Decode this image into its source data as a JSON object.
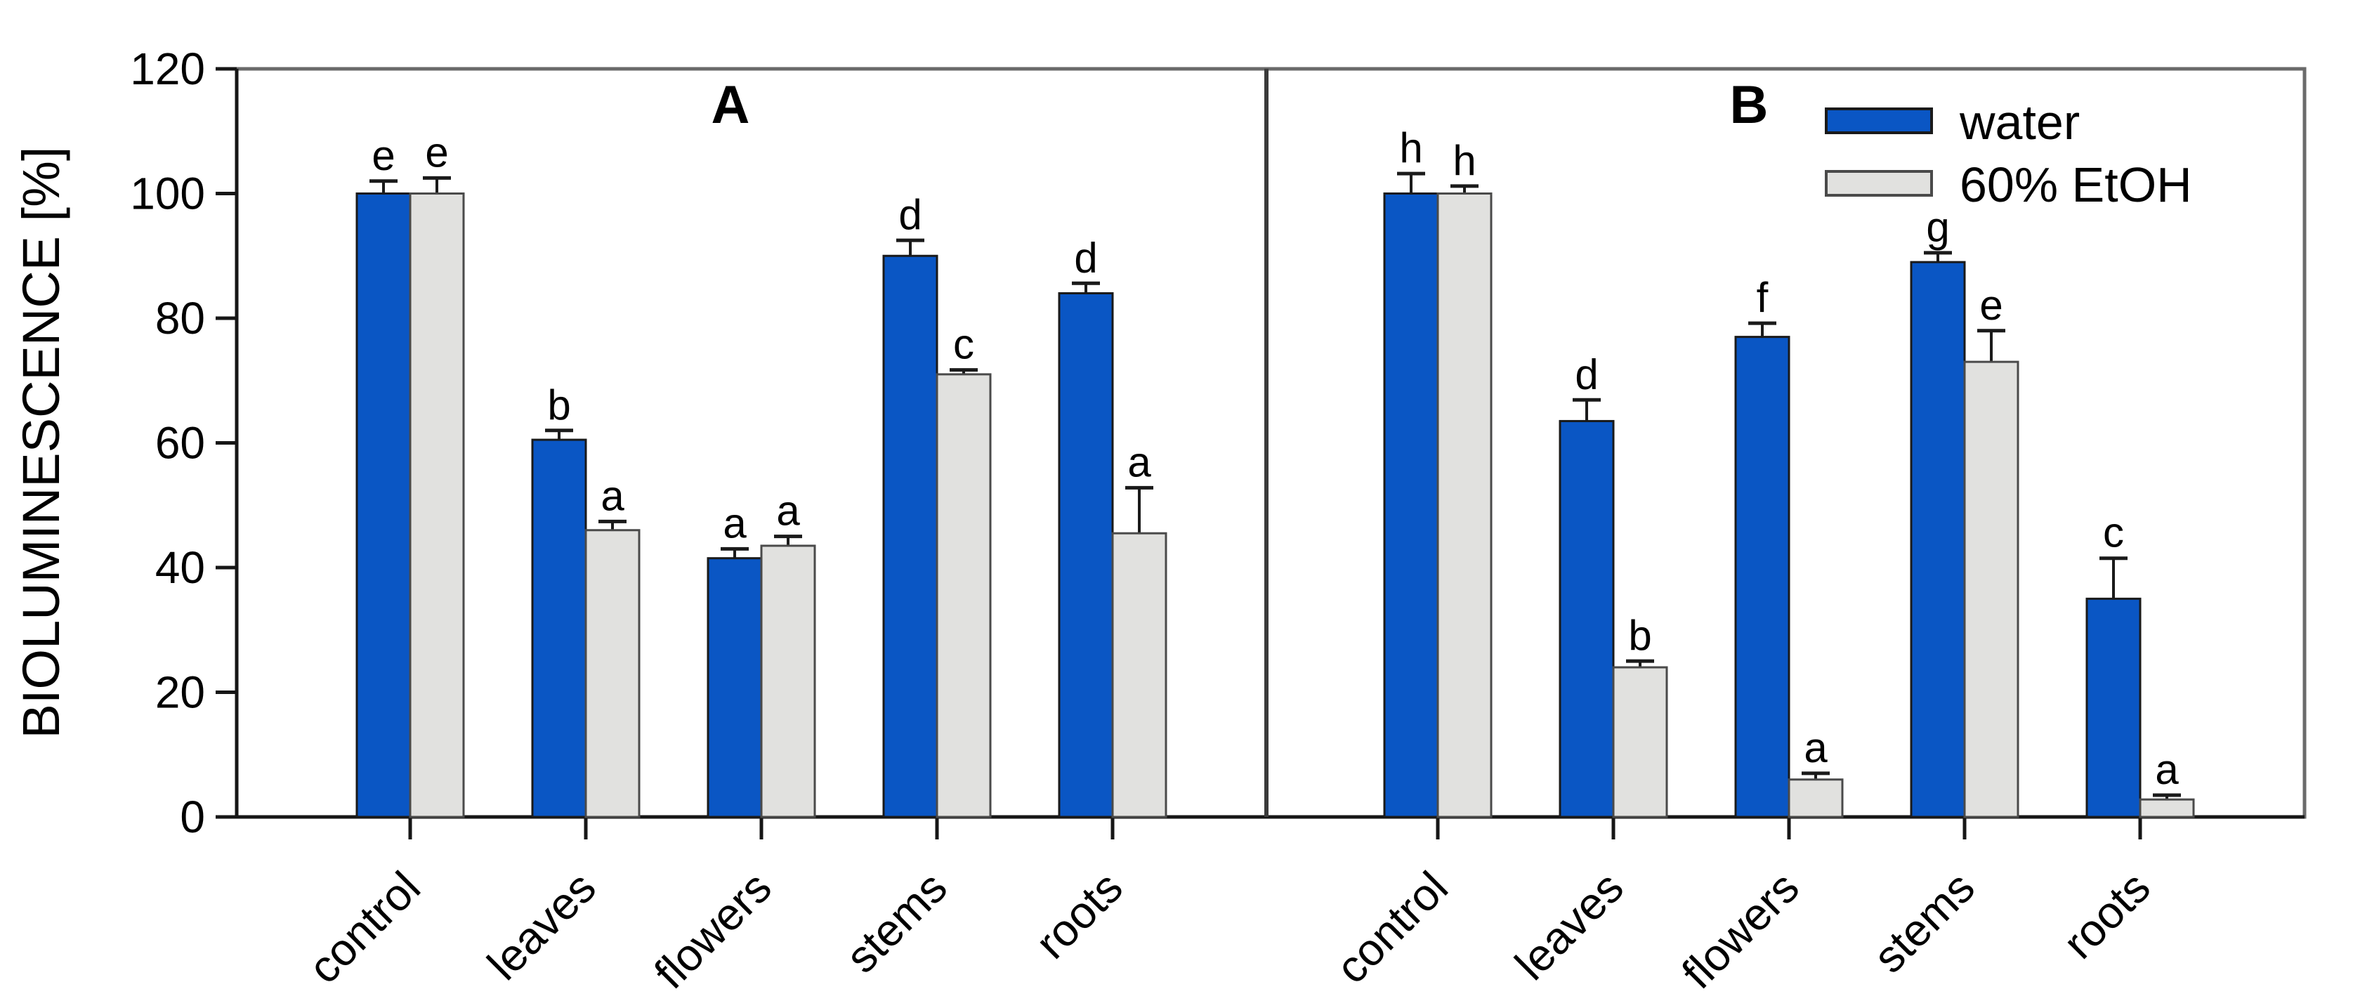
{
  "axes": {
    "y_title": "BIOLUMINESCENCE [%]"
  },
  "panels": [
    {
      "label": "A"
    },
    {
      "label": "B"
    }
  ],
  "legend": {
    "position": "top-right",
    "items": [
      {
        "label": "water",
        "color": "#0a56c4"
      },
      {
        "label": "60% EtOH",
        "color": "#e1e1df"
      }
    ]
  },
  "colors": {
    "water_fill": "#0a56c4",
    "etoh_fill": "#e1e1df",
    "bar_border": "#1a1a1a",
    "error_bar": "#1a1a1a",
    "frame": "#6a6a6a",
    "axis": "#161616",
    "panel_divider": "#3a3a3a",
    "text": "#000000",
    "background": "#ffffff"
  },
  "chart_data": [
    {
      "type": "bar",
      "panel": "A",
      "title": "A",
      "categories": [
        "control",
        "leaves",
        "flowers",
        "stems",
        "roots"
      ],
      "series": [
        {
          "name": "water",
          "color": "#0a56c4",
          "values": [
            100,
            60.5,
            41.5,
            90,
            84
          ],
          "errors": [
            2,
            1.5,
            1.5,
            2.5,
            1.6
          ],
          "sig_letters": [
            "e",
            "b",
            "a",
            "d",
            "d"
          ]
        },
        {
          "name": "60% EtOH",
          "color": "#e1e1df",
          "values": [
            100,
            46,
            43.5,
            71,
            45.5
          ],
          "errors": [
            2.5,
            1.4,
            1.5,
            0.7,
            7.3
          ],
          "sig_letters": [
            "e",
            "a",
            "a",
            "c",
            "a"
          ]
        }
      ],
      "xlabel": "",
      "ylabel": "BIOLUMINESCENCE [%]",
      "ylim": [
        0,
        120
      ],
      "y_ticks": [
        0,
        20,
        40,
        60,
        80,
        100,
        120
      ],
      "grid": false,
      "x_label_rotation_deg": 45
    },
    {
      "type": "bar",
      "panel": "B",
      "title": "B",
      "categories": [
        "control",
        "leaves",
        "flowers",
        "stems",
        "roots"
      ],
      "series": [
        {
          "name": "water",
          "color": "#0a56c4",
          "values": [
            100,
            63.5,
            77,
            89,
            35
          ],
          "errors": [
            3.2,
            3.4,
            2.2,
            1.5,
            6.5
          ],
          "sig_letters": [
            "h",
            "d",
            "f",
            "g",
            "c"
          ]
        },
        {
          "name": "60% EtOH",
          "color": "#e1e1df",
          "values": [
            100,
            24,
            6,
            73,
            2.8
          ],
          "errors": [
            1.2,
            1,
            1,
            5,
            0.7
          ],
          "sig_letters": [
            "h",
            "b",
            "a",
            "e",
            "a"
          ]
        }
      ],
      "xlabel": "",
      "ylabel": "BIOLUMINESCENCE [%]",
      "ylim": [
        0,
        120
      ],
      "y_ticks": [
        0,
        20,
        40,
        60,
        80,
        100,
        120
      ],
      "grid": false,
      "x_label_rotation_deg": 45
    }
  ]
}
